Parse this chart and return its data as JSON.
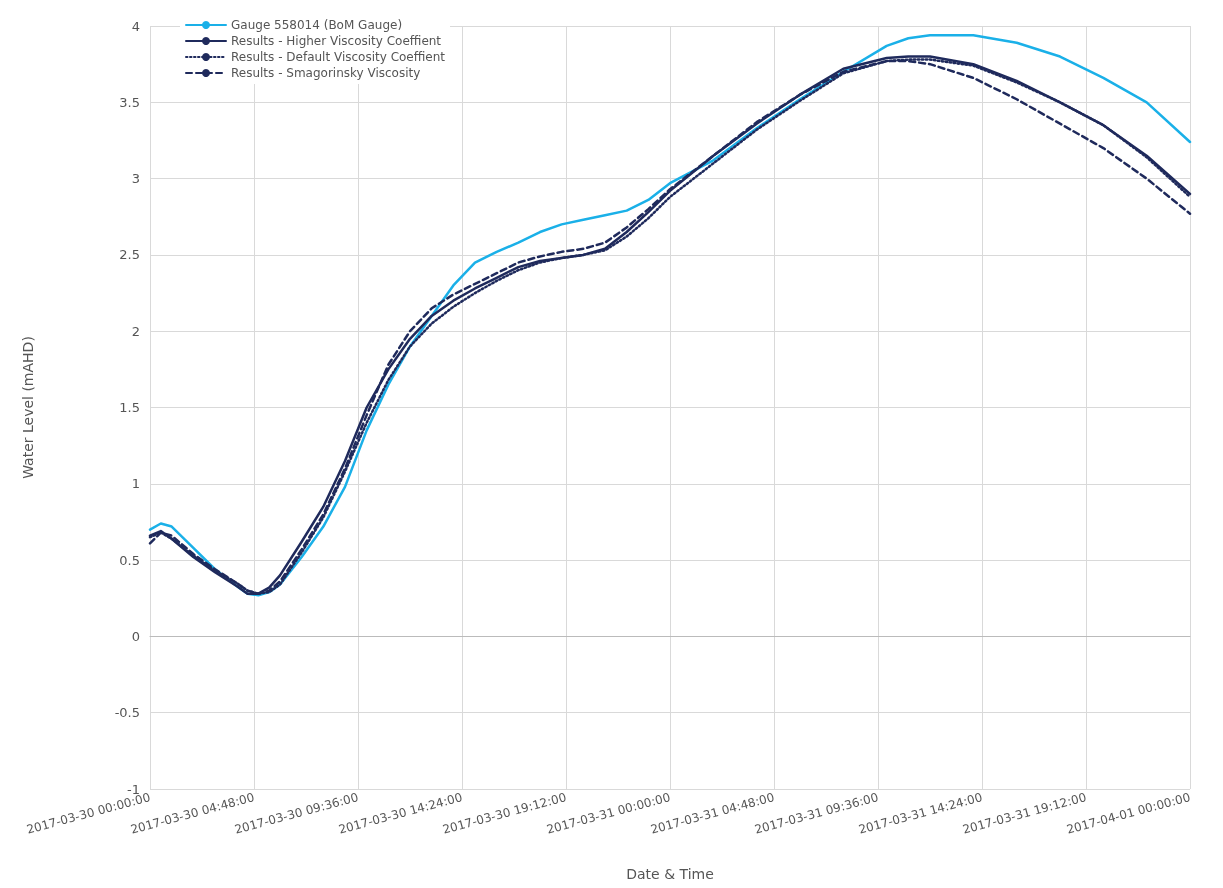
{
  "chart_data": {
    "type": "line",
    "xlabel": "Date & Time",
    "ylabel": "Water Level (mAHD)",
    "x": [
      "2017-03-30T00:00",
      "2017-03-30T00:30",
      "2017-03-30T01:00",
      "2017-03-30T02:00",
      "2017-03-30T03:00",
      "2017-03-30T04:00",
      "2017-03-30T04:30",
      "2017-03-30T05:00",
      "2017-03-30T05:30",
      "2017-03-30T06:00",
      "2017-03-30T07:00",
      "2017-03-30T08:00",
      "2017-03-30T09:00",
      "2017-03-30T10:00",
      "2017-03-30T11:00",
      "2017-03-30T12:00",
      "2017-03-30T13:00",
      "2017-03-30T14:00",
      "2017-03-30T15:00",
      "2017-03-30T16:00",
      "2017-03-30T17:00",
      "2017-03-30T18:00",
      "2017-03-30T19:00",
      "2017-03-30T20:00",
      "2017-03-30T21:00",
      "2017-03-30T22:00",
      "2017-03-30T23:00",
      "2017-03-31T00:00",
      "2017-03-31T02:00",
      "2017-03-31T04:00",
      "2017-03-31T06:00",
      "2017-03-31T08:00",
      "2017-03-31T10:00",
      "2017-03-31T11:00",
      "2017-03-31T12:00",
      "2017-03-31T14:00",
      "2017-03-31T16:00",
      "2017-03-31T18:00",
      "2017-03-31T20:00",
      "2017-03-31T22:00",
      "2017-04-01T00:00"
    ],
    "series": [
      {
        "name": "Gauge 558014 (BoM Gauge)",
        "color": "#1ab0e8",
        "line_style": "solid",
        "values": [
          0.7,
          0.74,
          0.72,
          0.58,
          0.44,
          0.33,
          0.28,
          0.27,
          0.29,
          0.34,
          0.52,
          0.72,
          0.98,
          1.35,
          1.65,
          1.9,
          2.1,
          2.3,
          2.45,
          2.52,
          2.58,
          2.65,
          2.7,
          2.73,
          2.76,
          2.79,
          2.86,
          2.97,
          3.12,
          3.33,
          3.52,
          3.7,
          3.87,
          3.92,
          3.94,
          3.94,
          3.89,
          3.8,
          3.66,
          3.5,
          3.24
        ]
      },
      {
        "name": "Results - Higher Viscosity Coeffient",
        "color": "#1f2a5c",
        "line_style": "solid",
        "values": [
          0.66,
          0.69,
          0.64,
          0.52,
          0.42,
          0.33,
          0.28,
          0.28,
          0.32,
          0.4,
          0.62,
          0.85,
          1.15,
          1.5,
          1.75,
          1.95,
          2.1,
          2.2,
          2.28,
          2.35,
          2.42,
          2.46,
          2.48,
          2.5,
          2.54,
          2.65,
          2.78,
          2.92,
          3.15,
          3.36,
          3.55,
          3.72,
          3.79,
          3.8,
          3.8,
          3.75,
          3.64,
          3.5,
          3.35,
          3.15,
          2.9
        ]
      },
      {
        "name": "Results - Default Viscosity Coeffient",
        "color": "#1f2a5c",
        "line_style": "dotted",
        "values": [
          0.65,
          0.68,
          0.64,
          0.53,
          0.43,
          0.35,
          0.3,
          0.28,
          0.29,
          0.34,
          0.55,
          0.78,
          1.08,
          1.4,
          1.68,
          1.9,
          2.05,
          2.16,
          2.25,
          2.33,
          2.4,
          2.45,
          2.48,
          2.5,
          2.53,
          2.62,
          2.74,
          2.88,
          3.1,
          3.32,
          3.51,
          3.69,
          3.77,
          3.78,
          3.78,
          3.74,
          3.63,
          3.5,
          3.35,
          3.14,
          2.88
        ]
      },
      {
        "name": "Results - Smagorinsky Viscosity",
        "color": "#1f2a5c",
        "line_style": "dashed",
        "values": [
          0.61,
          0.68,
          0.66,
          0.54,
          0.44,
          0.35,
          0.3,
          0.28,
          0.3,
          0.36,
          0.57,
          0.8,
          1.1,
          1.45,
          1.78,
          2.0,
          2.15,
          2.24,
          2.31,
          2.38,
          2.45,
          2.49,
          2.52,
          2.54,
          2.58,
          2.68,
          2.8,
          2.93,
          3.15,
          3.37,
          3.55,
          3.7,
          3.77,
          3.77,
          3.75,
          3.66,
          3.52,
          3.36,
          3.2,
          3.0,
          2.77
        ]
      }
    ],
    "xlim": [
      "2017-03-30T00:00",
      "2017-04-01T00:00"
    ],
    "xticks": [
      {
        "value": "2017-03-30T00:00",
        "label": "2017-03-30 00:00:00"
      },
      {
        "value": "2017-03-30T04:48",
        "label": "2017-03-30 04:48:00"
      },
      {
        "value": "2017-03-30T09:36",
        "label": "2017-03-30 09:36:00"
      },
      {
        "value": "2017-03-30T14:24",
        "label": "2017-03-30 14:24:00"
      },
      {
        "value": "2017-03-30T19:12",
        "label": "2017-03-30 19:12:00"
      },
      {
        "value": "2017-03-31T00:00",
        "label": "2017-03-31 00:00:00"
      },
      {
        "value": "2017-03-31T04:48",
        "label": "2017-03-31 04:48:00"
      },
      {
        "value": "2017-03-31T09:36",
        "label": "2017-03-31 09:36:00"
      },
      {
        "value": "2017-03-31T14:24",
        "label": "2017-03-31 14:24:00"
      },
      {
        "value": "2017-03-31T19:12",
        "label": "2017-03-31 19:12:00"
      },
      {
        "value": "2017-04-01T00:00",
        "label": "2017-04-01 00:00:00"
      }
    ],
    "ylim": [
      -1,
      4
    ],
    "yticks": [
      -1,
      -0.5,
      0,
      0.5,
      1,
      1.5,
      2,
      2.5,
      3,
      3.5,
      4
    ],
    "grid": true,
    "legend": "top left",
    "marker": "none"
  }
}
